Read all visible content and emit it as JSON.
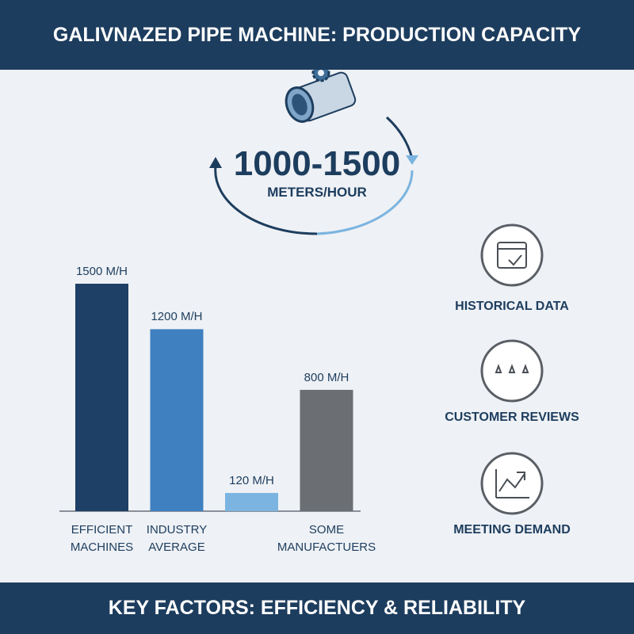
{
  "header": {
    "title": "GALIVNAZED PIPE MACHINE: PRODUCTION CAPACITY"
  },
  "capacity": {
    "value": "1000-1500",
    "unit": "METERS/HOUR"
  },
  "chart_data": {
    "type": "bar",
    "categories": [
      "EFFICIENT MACHINES",
      "INDUSTRY AVERAGE",
      null,
      "SOME MANUFACTUERS"
    ],
    "values": [
      1500,
      1200,
      120,
      800
    ],
    "value_labels": [
      "1500 M/H",
      "1200 M/H",
      "120 M/H",
      "800 M/H"
    ],
    "colors": [
      "#1e3f66",
      "#3f80c0",
      "#7bb4e0",
      "#6b6e72"
    ]
  },
  "factors": [
    "HISTORICAL DATA",
    "CUSTOMER REVIEWS",
    "MEETING DEMAND"
  ],
  "footer": {
    "title": "KEY FACTORS: EFFICIENCY & RELIABILITY"
  }
}
